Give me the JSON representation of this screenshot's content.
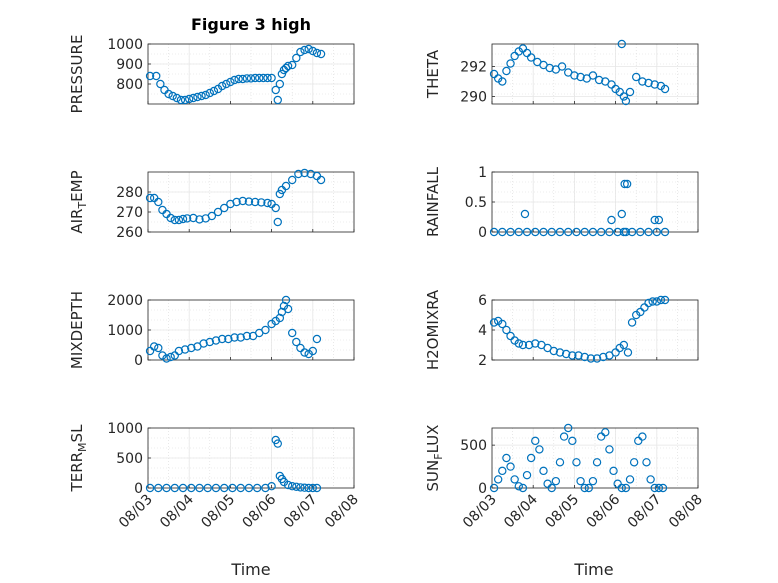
{
  "figure": {
    "title": "Figure 3 high",
    "xlabel": "Time"
  },
  "colors": {
    "marker": "#0072BD",
    "grid": "#e6e6e6",
    "axis": "#262626",
    "background": "#ffffff"
  },
  "chart_data": [
    {
      "type": "scatter",
      "title": "Figure 3 high",
      "xlabel": "",
      "ylabel": "PRESSURE",
      "ylim": [
        700,
        1000
      ],
      "xlim": [
        0,
        5
      ],
      "grid": true,
      "yticks": [
        {
          "v": 800,
          "label": "800"
        },
        {
          "v": 900,
          "label": "900"
        },
        {
          "v": 1000,
          "label": "1000"
        }
      ],
      "xticks": [],
      "markers": "circle",
      "x": [
        0.05,
        0.2,
        0.3,
        0.4,
        0.5,
        0.6,
        0.7,
        0.8,
        0.9,
        1.0,
        1.1,
        1.2,
        1.3,
        1.4,
        1.5,
        1.6,
        1.7,
        1.8,
        1.9,
        2.0,
        2.1,
        2.2,
        2.3,
        2.4,
        2.5,
        2.6,
        2.7,
        2.8,
        2.9,
        3.0,
        3.1,
        3.15,
        3.2,
        3.25,
        3.3,
        3.35,
        3.4,
        3.5,
        3.6,
        3.7,
        3.8,
        3.9,
        4.0,
        4.1,
        4.2
      ],
      "y": [
        840,
        840,
        800,
        770,
        750,
        740,
        730,
        720,
        720,
        725,
        730,
        735,
        740,
        745,
        755,
        765,
        775,
        790,
        800,
        810,
        820,
        825,
        825,
        828,
        828,
        830,
        830,
        830,
        830,
        830,
        770,
        720,
        800,
        850,
        870,
        880,
        890,
        895,
        930,
        960,
        970,
        975,
        965,
        955,
        950
      ]
    },
    {
      "type": "scatter",
      "ylabel": "THETA",
      "ylim": [
        289.5,
        293.5
      ],
      "xlim": [
        0,
        5
      ],
      "grid": true,
      "yticks": [
        {
          "v": 290,
          "label": "290"
        },
        {
          "v": 292,
          "label": "292"
        }
      ],
      "xticks": [],
      "markers": "circle",
      "x": [
        0.05,
        0.15,
        0.25,
        0.35,
        0.45,
        0.55,
        0.65,
        0.75,
        0.85,
        0.95,
        1.1,
        1.25,
        1.4,
        1.55,
        1.7,
        1.85,
        2.0,
        2.15,
        2.3,
        2.45,
        2.6,
        2.75,
        2.9,
        3.0,
        3.1,
        3.15,
        3.2,
        3.25,
        3.35,
        3.5,
        3.65,
        3.8,
        3.95,
        4.1,
        4.2
      ],
      "y": [
        291.5,
        291.2,
        291.0,
        291.7,
        292.2,
        292.7,
        293.0,
        293.2,
        292.9,
        292.6,
        292.3,
        292.1,
        291.9,
        291.8,
        292.0,
        291.6,
        291.4,
        291.3,
        291.2,
        291.4,
        291.1,
        291.0,
        290.8,
        290.5,
        290.3,
        293.5,
        290.0,
        289.7,
        290.3,
        291.3,
        291.0,
        290.9,
        290.8,
        290.7,
        290.5
      ]
    },
    {
      "type": "scatter",
      "ylabel": "AIR_TEMP",
      "ylim": [
        260,
        290
      ],
      "xlim": [
        0,
        5
      ],
      "grid": true,
      "yticks": [
        {
          "v": 260,
          "label": "260"
        },
        {
          "v": 270,
          "label": "270"
        },
        {
          "v": 280,
          "label": "280"
        }
      ],
      "xticks": [],
      "markers": "circle",
      "x": [
        0.05,
        0.15,
        0.25,
        0.35,
        0.45,
        0.55,
        0.65,
        0.75,
        0.85,
        0.95,
        1.1,
        1.25,
        1.4,
        1.55,
        1.7,
        1.85,
        2.0,
        2.15,
        2.3,
        2.45,
        2.6,
        2.75,
        2.9,
        3.0,
        3.1,
        3.15,
        3.2,
        3.25,
        3.35,
        3.5,
        3.65,
        3.8,
        3.95,
        4.1,
        4.2
      ],
      "y": [
        277,
        277,
        275,
        271,
        269,
        267,
        266,
        266,
        266.5,
        266.8,
        267,
        266.3,
        266.8,
        268,
        270,
        272,
        274,
        275,
        275.5,
        275.2,
        275,
        274.8,
        274.5,
        274,
        272,
        265,
        279,
        281,
        283,
        286,
        289,
        289.5,
        289,
        288,
        286
      ]
    },
    {
      "type": "scatter",
      "ylabel": "RAINFALL",
      "ylim": [
        0,
        1
      ],
      "xlim": [
        0,
        5
      ],
      "grid": true,
      "yticks": [
        {
          "v": 0,
          "label": "0"
        },
        {
          "v": 0.5,
          "label": "0.5"
        },
        {
          "v": 1,
          "label": "1"
        }
      ],
      "xticks": [],
      "markers": "circle",
      "x": [
        0.05,
        0.25,
        0.45,
        0.65,
        0.85,
        1.05,
        1.25,
        1.45,
        1.65,
        1.85,
        2.05,
        2.25,
        2.45,
        2.65,
        2.85,
        3.05,
        3.2,
        3.25,
        3.4,
        3.6,
        3.8,
        4.0,
        4.2,
        0.8,
        2.9,
        3.15,
        3.22,
        3.28,
        3.95,
        4.05
      ],
      "y": [
        0,
        0,
        0,
        0,
        0,
        0,
        0,
        0,
        0,
        0,
        0,
        0,
        0,
        0,
        0,
        0,
        0,
        0,
        0,
        0,
        0,
        0,
        0,
        0.3,
        0.2,
        0.3,
        0.8,
        0.8,
        0.2,
        0.2
      ]
    },
    {
      "type": "scatter",
      "ylabel": "MIXDEPTH",
      "ylim": [
        0,
        2000
      ],
      "xlim": [
        0,
        5
      ],
      "grid": true,
      "yticks": [
        {
          "v": 0,
          "label": "0"
        },
        {
          "v": 1000,
          "label": "1000"
        },
        {
          "v": 2000,
          "label": "2000"
        }
      ],
      "xticks": [],
      "markers": "circle",
      "x": [
        0.05,
        0.15,
        0.25,
        0.35,
        0.45,
        0.55,
        0.65,
        0.75,
        0.9,
        1.05,
        1.2,
        1.35,
        1.5,
        1.65,
        1.8,
        1.95,
        2.1,
        2.25,
        2.4,
        2.55,
        2.7,
        2.85,
        3.0,
        3.1,
        3.2,
        3.25,
        3.3,
        3.35,
        3.4,
        3.5,
        3.6,
        3.7,
        3.8,
        3.9,
        4.0,
        4.1
      ],
      "y": [
        300,
        450,
        400,
        150,
        50,
        100,
        150,
        300,
        350,
        400,
        450,
        550,
        600,
        650,
        700,
        700,
        750,
        750,
        800,
        800,
        900,
        1000,
        1200,
        1300,
        1400,
        1600,
        1800,
        2100,
        1700,
        900,
        600,
        400,
        250,
        200,
        300,
        700
      ]
    },
    {
      "type": "scatter",
      "ylabel": "H2OMIXRA",
      "ylim": [
        2,
        6
      ],
      "xlim": [
        0,
        5
      ],
      "grid": true,
      "yticks": [
        {
          "v": 2,
          "label": "2"
        },
        {
          "v": 4,
          "label": "4"
        },
        {
          "v": 6,
          "label": "6"
        }
      ],
      "xticks": [],
      "markers": "circle",
      "x": [
        0.05,
        0.15,
        0.25,
        0.35,
        0.45,
        0.55,
        0.65,
        0.75,
        0.9,
        1.05,
        1.2,
        1.35,
        1.5,
        1.65,
        1.8,
        1.95,
        2.1,
        2.25,
        2.4,
        2.55,
        2.7,
        2.85,
        3.0,
        3.1,
        3.2,
        3.3,
        3.4,
        3.5,
        3.6,
        3.7,
        3.8,
        3.9,
        4.0,
        4.1,
        4.2
      ],
      "y": [
        4.5,
        4.6,
        4.4,
        4.0,
        3.6,
        3.3,
        3.1,
        3.0,
        3.0,
        3.1,
        3.0,
        2.8,
        2.6,
        2.5,
        2.4,
        2.3,
        2.3,
        2.2,
        2.1,
        2.1,
        2.2,
        2.3,
        2.5,
        2.8,
        3.0,
        2.5,
        4.5,
        5.0,
        5.2,
        5.5,
        5.8,
        5.9,
        5.9,
        6.0,
        6.0
      ]
    },
    {
      "type": "scatter",
      "ylabel": "TERR_MSL",
      "ylim": [
        0,
        1000
      ],
      "xlim": [
        0,
        5
      ],
      "grid": true,
      "yticks": [
        {
          "v": 0,
          "label": "0"
        },
        {
          "v": 500,
          "label": "500"
        },
        {
          "v": 1000,
          "label": "1000"
        }
      ],
      "xticks": [
        {
          "v": 0,
          "label": "08/03"
        },
        {
          "v": 1,
          "label": "08/04"
        },
        {
          "v": 2,
          "label": "08/05"
        },
        {
          "v": 3,
          "label": "08/06"
        },
        {
          "v": 4,
          "label": "08/07"
        },
        {
          "v": 5,
          "label": "08/08"
        }
      ],
      "markers": "circle",
      "x": [
        0.05,
        0.25,
        0.45,
        0.65,
        0.85,
        1.05,
        1.25,
        1.45,
        1.65,
        1.85,
        2.05,
        2.25,
        2.45,
        2.65,
        2.85,
        3.0,
        3.1,
        3.15,
        3.2,
        3.25,
        3.3,
        3.4,
        3.5,
        3.6,
        3.7,
        3.8,
        3.9,
        4.0,
        4.1
      ],
      "y": [
        0,
        0,
        0,
        0,
        0,
        0,
        0,
        0,
        0,
        0,
        0,
        0,
        0,
        0,
        0,
        30,
        800,
        740,
        200,
        150,
        100,
        50,
        30,
        20,
        10,
        5,
        0,
        0,
        0
      ]
    },
    {
      "type": "scatter",
      "ylabel": "SUN_FLUX",
      "ylim": [
        0,
        700
      ],
      "xlim": [
        0,
        5
      ],
      "grid": true,
      "yticks": [
        {
          "v": 0,
          "label": "0"
        },
        {
          "v": 500,
          "label": "500"
        }
      ],
      "xticks": [
        {
          "v": 0,
          "label": "08/03"
        },
        {
          "v": 1,
          "label": "08/04"
        },
        {
          "v": 2,
          "label": "08/05"
        },
        {
          "v": 3,
          "label": "08/06"
        },
        {
          "v": 4,
          "label": "08/07"
        },
        {
          "v": 5,
          "label": "08/08"
        }
      ],
      "markers": "circle",
      "x": [
        0.05,
        0.15,
        0.25,
        0.35,
        0.45,
        0.55,
        0.65,
        0.75,
        0.85,
        0.95,
        1.05,
        1.15,
        1.25,
        1.35,
        1.45,
        1.55,
        1.65,
        1.75,
        1.85,
        1.95,
        2.05,
        2.15,
        2.25,
        2.35,
        2.45,
        2.55,
        2.65,
        2.75,
        2.85,
        2.95,
        3.05,
        3.15,
        3.25,
        3.35,
        3.45,
        3.55,
        3.65,
        3.75,
        3.85,
        3.95,
        4.05,
        4.15
      ],
      "y": [
        0,
        100,
        200,
        350,
        250,
        100,
        20,
        0,
        150,
        350,
        550,
        450,
        200,
        50,
        0,
        80,
        300,
        600,
        700,
        550,
        300,
        80,
        0,
        0,
        80,
        300,
        600,
        650,
        450,
        200,
        50,
        0,
        0,
        100,
        300,
        550,
        600,
        300,
        100,
        0,
        0,
        0
      ]
    }
  ]
}
